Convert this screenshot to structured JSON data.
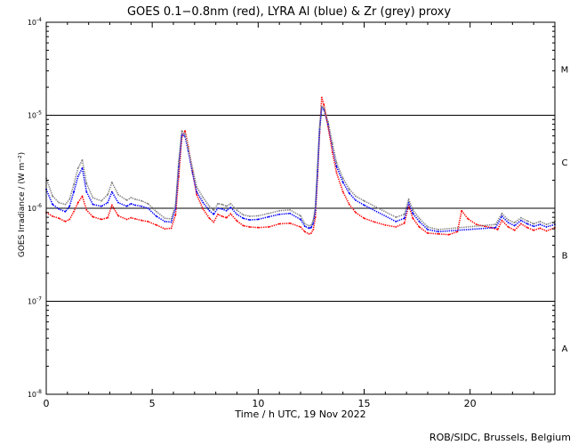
{
  "chart_data": {
    "type": "scatter",
    "title": "GOES 0.1−0.8nm (red), LYRA Al (blue) & Zr (grey) proxy",
    "xlabel": "Time / h UTC, 19 Nov 2022",
    "ylabel": "GOES Irradiance / (W m⁻²)",
    "credit": "ROB/SIDC, Brussels, Belgium",
    "x_range": [
      0,
      24
    ],
    "y_range": [
      1e-08,
      0.0001
    ],
    "y_scale": "log",
    "x_ticks": [
      "0",
      "5",
      "10",
      "15",
      "20"
    ],
    "y_ticks": [
      {
        "mantissa": "10",
        "exponent": "-8"
      },
      {
        "mantissa": "10",
        "exponent": "-7"
      },
      {
        "mantissa": "10",
        "exponent": "-6"
      },
      {
        "mantissa": "10",
        "exponent": "-5"
      },
      {
        "mantissa": "10",
        "exponent": "-4"
      }
    ],
    "flare_classes": [
      {
        "label": "A",
        "y": 3.16e-08
      },
      {
        "label": "B",
        "y": 3.16e-07
      },
      {
        "label": "C",
        "y": 3.16e-06
      },
      {
        "label": "M",
        "y": 3.16e-05
      }
    ],
    "threshold_lines": [
      1e-07,
      1e-06,
      1e-05
    ],
    "series": [
      {
        "name": "GOES 0.1−0.8nm",
        "color": "#ff0000",
        "x": [
          0.0,
          0.3,
          0.6,
          0.9,
          1.1,
          1.3,
          1.5,
          1.7,
          1.9,
          2.2,
          2.6,
          2.9,
          3.1,
          3.4,
          3.8,
          4.0,
          4.2,
          4.5,
          4.8,
          5.2,
          5.6,
          5.9,
          6.1,
          6.25,
          6.4,
          6.55,
          6.7,
          6.9,
          7.1,
          7.4,
          7.7,
          7.9,
          8.1,
          8.3,
          8.5,
          8.7,
          9.0,
          9.3,
          9.6,
          10.0,
          10.5,
          11.0,
          11.5,
          12.0,
          12.2,
          12.4,
          12.5,
          12.6,
          12.7,
          12.8,
          12.9,
          13.0,
          13.1,
          13.3,
          13.5,
          13.7,
          14.0,
          14.3,
          14.6,
          15.0,
          15.5,
          16.0,
          16.5,
          16.9,
          17.1,
          17.3,
          17.6,
          18.0,
          18.5,
          19.0,
          19.4,
          19.6,
          19.9,
          20.3,
          20.7,
          21.0,
          21.3,
          21.5,
          21.8,
          22.1,
          22.4,
          22.7,
          23.0,
          23.3,
          23.6,
          24.0
        ],
        "y": [
          9e-07,
          8.2e-07,
          7.8e-07,
          7.2e-07,
          7.6e-07,
          9.2e-07,
          1.15e-06,
          1.35e-06,
          9.6e-07,
          8.1e-07,
          7.6e-07,
          7.9e-07,
          1.08e-06,
          8.3e-07,
          7.6e-07,
          7.9e-07,
          7.7e-07,
          7.4e-07,
          7.2e-07,
          6.6e-07,
          6e-07,
          6.1e-07,
          8.5e-07,
          2.2e-06,
          5.9e-06,
          6.8e-06,
          4.6e-06,
          2.5e-06,
          1.4e-06,
          9.8e-07,
          7.8e-07,
          7.1e-07,
          8.6e-07,
          8.2e-07,
          7.9e-07,
          8.7e-07,
          7.3e-07,
          6.5e-07,
          6.3e-07,
          6.2e-07,
          6.3e-07,
          6.8e-07,
          6.9e-07,
          6.3e-07,
          5.6e-07,
          5.3e-07,
          5.4e-07,
          5.9e-07,
          8e-07,
          2.2e-06,
          6.5e-06,
          1.55e-05,
          1.3e-05,
          7.5e-06,
          4e-06,
          2.4e-06,
          1.5e-06,
          1.1e-06,
          9e-07,
          7.8e-07,
          7.1e-07,
          6.6e-07,
          6.3e-07,
          6.9e-07,
          1.08e-06,
          7.8e-07,
          6.3e-07,
          5.4e-07,
          5.3e-07,
          5.2e-07,
          5.6e-07,
          9.4e-07,
          7.7e-07,
          6.7e-07,
          6.4e-07,
          6.2e-07,
          5.9e-07,
          7.4e-07,
          6.3e-07,
          5.8e-07,
          6.8e-07,
          6.2e-07,
          5.8e-07,
          6.1e-07,
          5.7e-07,
          6.2e-07
        ]
      },
      {
        "name": "LYRA Al proxy",
        "color": "#0000ff",
        "x": [
          0.0,
          0.3,
          0.6,
          0.9,
          1.1,
          1.3,
          1.5,
          1.7,
          1.9,
          2.2,
          2.6,
          2.9,
          3.1,
          3.4,
          3.8,
          4.0,
          4.2,
          4.5,
          4.8,
          5.2,
          5.6,
          5.9,
          6.1,
          6.25,
          6.4,
          6.55,
          6.7,
          6.9,
          7.1,
          7.4,
          7.7,
          7.9,
          8.1,
          8.3,
          8.5,
          8.7,
          9.0,
          9.3,
          9.6,
          10.0,
          10.5,
          11.0,
          11.5,
          12.0,
          12.2,
          12.4,
          12.5,
          12.6,
          12.7,
          12.8,
          12.9,
          13.0,
          13.1,
          13.3,
          13.5,
          13.7,
          14.0,
          14.3,
          14.6,
          15.0,
          16.5,
          16.9,
          17.1,
          17.3,
          17.6,
          18.0,
          18.5,
          21.2,
          21.5,
          21.8,
          22.1,
          22.4,
          22.7,
          23.0,
          23.3,
          23.6,
          24.0
        ],
        "y": [
          1.6e-06,
          1.1e-06,
          9.8e-07,
          9.2e-07,
          1.05e-06,
          1.5e-06,
          2.2e-06,
          2.7e-06,
          1.5e-06,
          1.1e-06,
          1.05e-06,
          1.15e-06,
          1.5e-06,
          1.15e-06,
          1.05e-06,
          1.12e-06,
          1.08e-06,
          1.05e-06,
          1e-06,
          8.2e-07,
          7.2e-07,
          7.1e-07,
          1e-06,
          2.8e-06,
          6.3e-06,
          5.9e-06,
          4.1e-06,
          2.4e-06,
          1.5e-06,
          1.15e-06,
          9.4e-07,
          8.6e-07,
          1e-06,
          9.8e-07,
          9.4e-07,
          1.02e-06,
          8.6e-07,
          7.8e-07,
          7.5e-07,
          7.6e-07,
          8.1e-07,
          8.6e-07,
          8.8e-07,
          7.6e-07,
          6.4e-07,
          6.1e-07,
          6.2e-07,
          6.9e-07,
          9.5e-07,
          2.5e-06,
          7e-06,
          1.2e-05,
          1.15e-05,
          8e-06,
          4.6e-06,
          2.8e-06,
          1.9e-06,
          1.45e-06,
          1.22e-06,
          1.08e-06,
          7.2e-07,
          7.8e-07,
          1.15e-06,
          8.8e-07,
          7.2e-07,
          5.9e-07,
          5.6e-07,
          6.2e-07,
          8.2e-07,
          7e-07,
          6.5e-07,
          7.4e-07,
          6.8e-07,
          6.4e-07,
          6.7e-07,
          6.3e-07,
          6.7e-07
        ]
      },
      {
        "name": "LYRA Zr proxy",
        "color": "#808080",
        "x": [
          0.0,
          0.3,
          0.6,
          0.9,
          1.1,
          1.3,
          1.5,
          1.7,
          1.9,
          2.2,
          2.6,
          2.9,
          3.1,
          3.4,
          3.8,
          4.0,
          4.2,
          4.5,
          4.8,
          5.2,
          5.6,
          5.9,
          6.1,
          6.25,
          6.4,
          6.55,
          6.7,
          6.9,
          7.1,
          7.4,
          7.7,
          7.9,
          8.1,
          8.3,
          8.5,
          8.7,
          9.0,
          9.3,
          9.6,
          10.0,
          10.5,
          11.0,
          11.5,
          12.0,
          12.2,
          12.4,
          12.5,
          12.6,
          12.7,
          12.8,
          12.9,
          13.0,
          13.1,
          13.3,
          13.5,
          13.7,
          14.0,
          14.3,
          14.6,
          15.0,
          16.5,
          16.9,
          17.1,
          17.3,
          17.6,
          18.0,
          18.5,
          21.2,
          21.5,
          21.8,
          22.1,
          22.4,
          22.7,
          23.0,
          23.3,
          23.6,
          24.0
        ],
        "y": [
          2.1e-06,
          1.35e-06,
          1.15e-06,
          1.1e-06,
          1.25e-06,
          1.8e-06,
          2.7e-06,
          3.3e-06,
          1.85e-06,
          1.3e-06,
          1.2e-06,
          1.4e-06,
          1.9e-06,
          1.4e-06,
          1.22e-06,
          1.3e-06,
          1.25e-06,
          1.2e-06,
          1.12e-06,
          9.2e-07,
          7.8e-07,
          7.7e-07,
          1.1e-06,
          3.2e-06,
          6.8e-06,
          6.3e-06,
          4.4e-06,
          2.7e-06,
          1.7e-06,
          1.3e-06,
          1.05e-06,
          9.5e-07,
          1.12e-06,
          1.1e-06,
          1.05e-06,
          1.12e-06,
          9.5e-07,
          8.5e-07,
          8.2e-07,
          8.3e-07,
          8.8e-07,
          9.4e-07,
          9.6e-07,
          8.3e-07,
          6.8e-07,
          6.5e-07,
          6.6e-07,
          7.4e-07,
          1.05e-06,
          2.8e-06,
          7.5e-06,
          1.25e-05,
          1.2e-05,
          8.5e-06,
          5e-06,
          3.1e-06,
          2.1e-06,
          1.6e-06,
          1.35e-06,
          1.2e-06,
          8e-07,
          8.6e-07,
          1.25e-06,
          9.6e-07,
          7.8e-07,
          6.3e-07,
          5.9e-07,
          6.7e-07,
          8.8e-07,
          7.5e-07,
          7e-07,
          7.9e-07,
          7.3e-07,
          6.8e-07,
          7.2e-07,
          6.7e-07,
          7.2e-07
        ]
      }
    ]
  }
}
